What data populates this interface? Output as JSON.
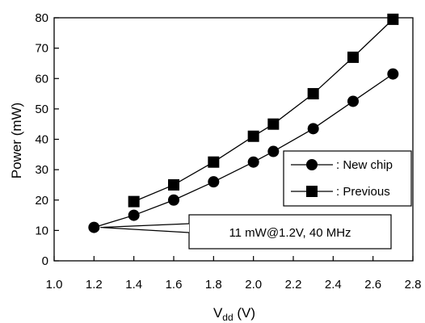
{
  "chart_data": {
    "type": "line",
    "xlabel": "V",
    "xlabel_sub": "dd",
    "xlabel_unit": " (V)",
    "ylabel": "Power (mW)",
    "xlim": [
      1.0,
      2.8
    ],
    "ylim": [
      0,
      80
    ],
    "xticks": [
      1.0,
      1.2,
      1.4,
      1.6,
      1.8,
      2.0,
      2.2,
      2.4,
      2.6,
      2.8
    ],
    "xtick_labels": [
      "1.0",
      "1.2",
      "1.4",
      "1.6",
      "1.8",
      "2.0",
      "2.2",
      "2.4",
      "2.6",
      "2.8"
    ],
    "yticks": [
      0,
      10,
      20,
      30,
      40,
      50,
      60,
      70,
      80
    ],
    "ytick_labels": [
      "0",
      "10",
      "20",
      "30",
      "40",
      "50",
      "60",
      "70",
      "80"
    ],
    "grid": false,
    "legend_position": "right",
    "series": [
      {
        "name": ": New chip",
        "marker": "circle",
        "x": [
          1.2,
          1.4,
          1.6,
          1.8,
          2.0,
          2.1,
          2.3,
          2.5,
          2.7
        ],
        "y": [
          11,
          15,
          20,
          26,
          32.5,
          36,
          43.5,
          52.5,
          61.5
        ]
      },
      {
        "name": ": Previous",
        "marker": "square",
        "x": [
          1.4,
          1.6,
          1.8,
          2.0,
          2.1,
          2.3,
          2.5,
          2.7
        ],
        "y": [
          19.5,
          25,
          32.5,
          41,
          45,
          55,
          67,
          79.5
        ]
      }
    ],
    "annotation": {
      "text": "11 mW@1.2V, 40 MHz",
      "x": 1.2,
      "y": 11
    }
  }
}
